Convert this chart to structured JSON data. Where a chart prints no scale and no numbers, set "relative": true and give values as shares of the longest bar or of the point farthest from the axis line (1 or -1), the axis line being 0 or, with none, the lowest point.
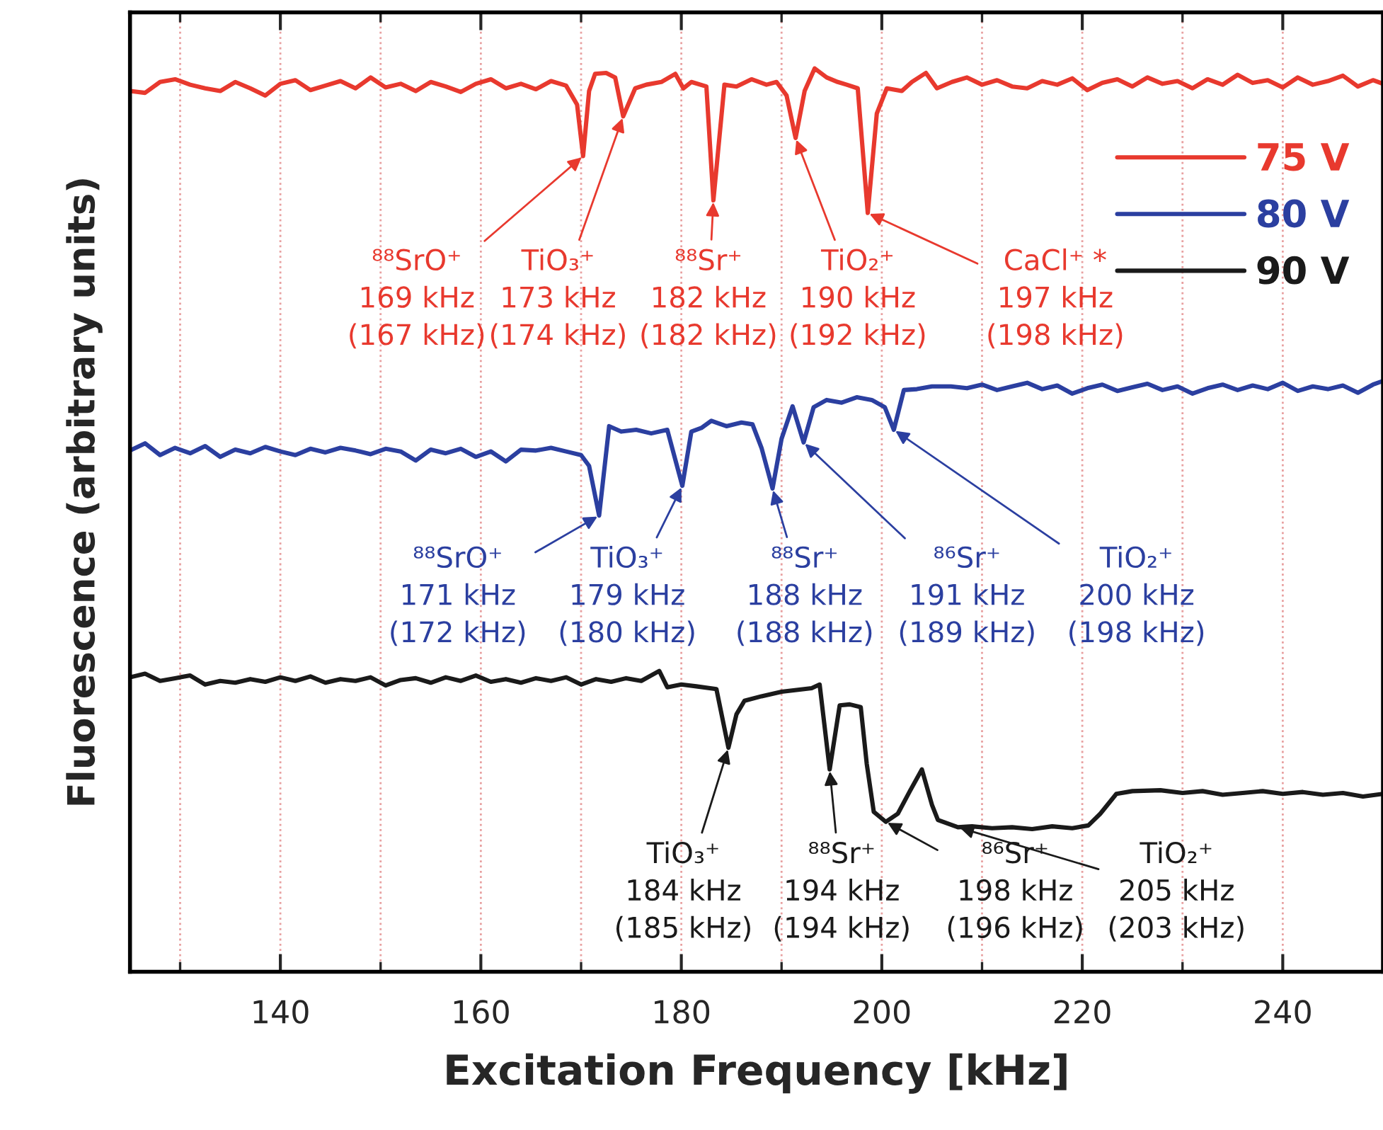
{
  "chart_data": {
    "type": "line",
    "relative": true,
    "xlabel": "Excitation Frequency [kHz]",
    "ylabel": "Fluorescence (arbitrary units)",
    "xlim": [
      125,
      250
    ],
    "xticks": [
      140,
      160,
      180,
      200,
      220,
      240
    ],
    "grid": "x",
    "legend": "top right",
    "tick_labels": "x",
    "marker": "none",
    "line_style": "solid",
    "series": [
      {
        "name": "75 V",
        "color": "#e8392e",
        "x": [
          125,
          126.5,
          128,
          129.5,
          131,
          132.5,
          134,
          135.5,
          137,
          138.5,
          140,
          141.5,
          143,
          144.5,
          146,
          147.5,
          149,
          150.5,
          152,
          153.5,
          155,
          156.5,
          158,
          159.5,
          161,
          162.5,
          164,
          165.5,
          167,
          168.5,
          169.6,
          170.2,
          170.8,
          171.4,
          172.5,
          173.4,
          174.2,
          175.4,
          176.5,
          178,
          179.4,
          180.2,
          181,
          182.5,
          183.2,
          184.3,
          185.5,
          187,
          188.5,
          189.5,
          190.5,
          191.4,
          192.3,
          193.3,
          194.5,
          195.6,
          196.5,
          197.6,
          198.6,
          199.5,
          200.5,
          202,
          203,
          204.4,
          205.5,
          207,
          208.5,
          210,
          211.5,
          213,
          214.5,
          216,
          217.5,
          219,
          220.5,
          222,
          223.5,
          225,
          226.5,
          228,
          229.5,
          231,
          232.5,
          234,
          235.5,
          237,
          238.5,
          240,
          241.5,
          243,
          244.5,
          246,
          247.5,
          249,
          250
        ],
        "values": [
          0.975,
          0.973,
          0.985,
          0.988,
          0.982,
          0.978,
          0.975,
          0.985,
          0.978,
          0.97,
          0.983,
          0.987,
          0.976,
          0.981,
          0.986,
          0.978,
          0.99,
          0.979,
          0.983,
          0.975,
          0.985,
          0.98,
          0.974,
          0.983,
          0.988,
          0.978,
          0.983,
          0.977,
          0.986,
          0.981,
          0.96,
          0.903,
          0.975,
          0.994,
          0.995,
          0.99,
          0.947,
          0.978,
          0.982,
          0.985,
          0.994,
          0.978,
          0.985,
          0.98,
          0.854,
          0.982,
          0.98,
          0.988,
          0.982,
          0.985,
          0.97,
          0.923,
          0.975,
          1.0,
          0.99,
          0.985,
          0.982,
          0.978,
          0.84,
          0.95,
          0.978,
          0.975,
          0.985,
          0.995,
          0.978,
          0.985,
          0.99,
          0.982,
          0.987,
          0.98,
          0.978,
          0.986,
          0.982,
          0.989,
          0.976,
          0.984,
          0.988,
          0.98,
          0.99,
          0.983,
          0.986,
          0.978,
          0.988,
          0.982,
          0.993,
          0.984,
          0.987,
          0.979,
          0.99,
          0.982,
          0.986,
          0.992,
          0.98,
          0.987,
          0.983
        ]
      },
      {
        "name": "80 V",
        "color": "#2b3fa0",
        "x": [
          125,
          126.5,
          128,
          129.5,
          131,
          132.5,
          134,
          135.5,
          137,
          138.5,
          140,
          141.5,
          143,
          144.5,
          146,
          147.5,
          149,
          150.5,
          152,
          153.5,
          155,
          156.5,
          158,
          159.5,
          161,
          162.5,
          164,
          165.5,
          167,
          168.5,
          170,
          170.8,
          171.8,
          172.8,
          174,
          175.5,
          177,
          178.6,
          180.1,
          181,
          182,
          183,
          184.5,
          186,
          187.1,
          188,
          189.1,
          190,
          191.1,
          192.2,
          193.2,
          194.5,
          196,
          197.5,
          199,
          200.3,
          201.2,
          202.2,
          203.5,
          205,
          206.9,
          208.5,
          210,
          211.5,
          213,
          214.5,
          216,
          217.5,
          219,
          220.5,
          222,
          223.5,
          225,
          226.5,
          228,
          229.5,
          231,
          232.5,
          234,
          235.5,
          237,
          238.5,
          240,
          241.5,
          243,
          244.5,
          246,
          247.5,
          249,
          250
        ],
        "values": [
          0.577,
          0.585,
          0.572,
          0.58,
          0.574,
          0.582,
          0.57,
          0.578,
          0.574,
          0.581,
          0.576,
          0.572,
          0.579,
          0.575,
          0.58,
          0.577,
          0.573,
          0.579,
          0.576,
          0.566,
          0.578,
          0.574,
          0.579,
          0.57,
          0.576,
          0.565,
          0.578,
          0.577,
          0.58,
          0.576,
          0.572,
          0.56,
          0.505,
          0.604,
          0.598,
          0.6,
          0.596,
          0.6,
          0.538,
          0.598,
          0.602,
          0.61,
          0.604,
          0.608,
          0.606,
          0.58,
          0.535,
          0.59,
          0.626,
          0.586,
          0.625,
          0.633,
          0.63,
          0.636,
          0.633,
          0.625,
          0.6,
          0.644,
          0.645,
          0.648,
          0.648,
          0.646,
          0.65,
          0.644,
          0.648,
          0.652,
          0.645,
          0.649,
          0.64,
          0.646,
          0.65,
          0.643,
          0.647,
          0.651,
          0.644,
          0.648,
          0.64,
          0.646,
          0.65,
          0.644,
          0.649,
          0.645,
          0.652,
          0.643,
          0.648,
          0.645,
          0.649,
          0.641,
          0.65,
          0.654
        ]
      },
      {
        "name": "90 V",
        "color": "#1a1a1a",
        "x": [
          125,
          126.5,
          128,
          129.5,
          131,
          132.5,
          134,
          135.5,
          137,
          138.5,
          140,
          141.5,
          143,
          144.5,
          146,
          147.5,
          149,
          150.5,
          152,
          153.5,
          155,
          156.5,
          158,
          159.5,
          161,
          162.5,
          164,
          165.5,
          167,
          168.5,
          170,
          171.5,
          173,
          174.5,
          176,
          177.8,
          178.6,
          180,
          181.5,
          183.5,
          184.7,
          185.5,
          186.3,
          188,
          190,
          191.5,
          193,
          193.8,
          194.8,
          195.8,
          196.8,
          197.9,
          198.5,
          199.2,
          200.4,
          201.6,
          202.8,
          204.0,
          205.0,
          205.6,
          207.6,
          209,
          211,
          213,
          215,
          217,
          219,
          220.6,
          221.8,
          223.4,
          225,
          227.8,
          230,
          232,
          234,
          236,
          238,
          240,
          242,
          244,
          246,
          248,
          250
        ],
        "values": [
          0.326,
          0.33,
          0.322,
          0.325,
          0.328,
          0.318,
          0.322,
          0.32,
          0.324,
          0.321,
          0.326,
          0.322,
          0.327,
          0.32,
          0.324,
          0.322,
          0.326,
          0.317,
          0.323,
          0.325,
          0.32,
          0.326,
          0.322,
          0.328,
          0.321,
          0.324,
          0.32,
          0.325,
          0.322,
          0.326,
          0.318,
          0.324,
          0.321,
          0.325,
          0.322,
          0.333,
          0.315,
          0.318,
          0.316,
          0.313,
          0.248,
          0.285,
          0.3,
          0.305,
          0.31,
          0.312,
          0.314,
          0.318,
          0.224,
          0.295,
          0.296,
          0.293,
          0.23,
          0.177,
          0.166,
          0.175,
          0.2,
          0.224,
          0.185,
          0.168,
          0.16,
          0.161,
          0.159,
          0.16,
          0.158,
          0.161,
          0.159,
          0.162,
          0.175,
          0.197,
          0.2,
          0.201,
          0.198,
          0.2,
          0.196,
          0.198,
          0.2,
          0.197,
          0.199,
          0.196,
          0.198,
          0.194,
          0.197
        ]
      }
    ],
    "annotations": [
      {
        "text": "⁸⁸SrO⁺\n169 kHz\n(167 kHz)",
        "x": 170.2,
        "y": 0.903
      },
      {
        "text": "TiO₃⁺\n173 kHz\n(174 kHz)",
        "x": 174.2,
        "y": 0.947
      },
      {
        "text": "⁸⁸Sr⁺\n182 kHz\n(182 kHz)",
        "x": 183.2,
        "y": 0.854
      },
      {
        "text": "TiO₂⁺\n190 kHz\n(192 kHz)",
        "x": 191.4,
        "y": 0.923
      },
      {
        "text": "CaCl⁺ *\n197 kHz\n(198 kHz)",
        "x": 198.6,
        "y": 0.84
      },
      {
        "text": "⁸⁸SrO⁺\n171 kHz\n(172 kHz)",
        "x": 171.8,
        "y": 0.505
      },
      {
        "text": "TiO₃⁺\n179 kHz\n(180 kHz)",
        "x": 180.1,
        "y": 0.538
      },
      {
        "text": "⁸⁸Sr⁺\n188 kHz\n(188 kHz)",
        "x": 189.1,
        "y": 0.535
      },
      {
        "text": "⁸⁶Sr⁺\n191 kHz\n(189 kHz)",
        "x": 192.2,
        "y": 0.586
      },
      {
        "text": "TiO₂⁺\n200 kHz\n(198 kHz)",
        "x": 201.2,
        "y": 0.6
      },
      {
        "text": "TiO₃⁺\n184 kHz\n(185 kHz)",
        "x": 184.7,
        "y": 0.248
      },
      {
        "text": "⁸⁸Sr⁺\n194 kHz\n(194 kHz)",
        "x": 194.8,
        "y": 0.224
      },
      {
        "text": "⁸⁶Sr⁺\n198 kHz\n(196 kHz)",
        "x": 200.4,
        "y": 0.166
      },
      {
        "text": "TiO₂⁺\n205 kHz\n(203 kHz)",
        "x": 207.6,
        "y": 0.16
      }
    ]
  }
}
